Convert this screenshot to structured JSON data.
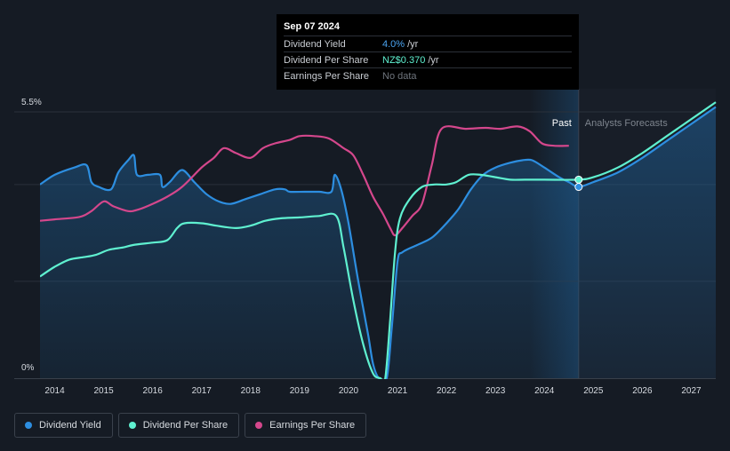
{
  "tooltip": {
    "date": "Sep 07 2024",
    "rows": [
      {
        "label": "Dividend Yield",
        "value": "4.0%",
        "unit": "/yr"
      },
      {
        "label": "Dividend Per Share",
        "value": "NZ$0.370",
        "unit": "/yr"
      },
      {
        "label": "Earnings Per Share",
        "value": "No data",
        "unit": ""
      }
    ]
  },
  "chart_data": {
    "type": "line",
    "y_top_label": "5.5%",
    "y_bottom_label": "0%",
    "ylim": [
      0,
      5.5
    ],
    "xlim": [
      2013.7,
      2027.5
    ],
    "x_ticks": [
      "2014",
      "2015",
      "2016",
      "2017",
      "2018",
      "2019",
      "2020",
      "2021",
      "2022",
      "2023",
      "2024",
      "2025",
      "2026",
      "2027"
    ],
    "past_label": "Past",
    "forecast_label": "Analysts Forecasts",
    "forecast_start": 2024.7,
    "highlight_start": 2023.7,
    "grid": true,
    "colors": {
      "dividend_yield": "#2d8ee0",
      "dividend_per_share": "#5ff0d0",
      "earnings_per_share": "#d4478c"
    },
    "series": [
      {
        "name": "Dividend Yield",
        "key": "dividend_yield",
        "points": [
          [
            2013.7,
            4.0
          ],
          [
            2014.0,
            4.2
          ],
          [
            2014.4,
            4.35
          ],
          [
            2014.65,
            4.4
          ],
          [
            2014.75,
            4.05
          ],
          [
            2014.9,
            3.95
          ],
          [
            2015.15,
            3.9
          ],
          [
            2015.3,
            4.25
          ],
          [
            2015.5,
            4.5
          ],
          [
            2015.62,
            4.6
          ],
          [
            2015.68,
            4.2
          ],
          [
            2015.9,
            4.2
          ],
          [
            2016.15,
            4.2
          ],
          [
            2016.2,
            3.95
          ],
          [
            2016.35,
            4.05
          ],
          [
            2016.6,
            4.3
          ],
          [
            2016.85,
            4.05
          ],
          [
            2017.1,
            3.8
          ],
          [
            2017.35,
            3.65
          ],
          [
            2017.6,
            3.6
          ],
          [
            2017.9,
            3.7
          ],
          [
            2018.2,
            3.8
          ],
          [
            2018.5,
            3.9
          ],
          [
            2018.7,
            3.9
          ],
          [
            2018.8,
            3.85
          ],
          [
            2019.1,
            3.85
          ],
          [
            2019.4,
            3.85
          ],
          [
            2019.65,
            3.85
          ],
          [
            2019.72,
            4.2
          ],
          [
            2019.85,
            3.9
          ],
          [
            2020.0,
            3.2
          ],
          [
            2020.2,
            2.0
          ],
          [
            2020.4,
            0.9
          ],
          [
            2020.5,
            0.3
          ],
          [
            2020.62,
            0.0
          ],
          [
            2020.78,
            0.0
          ],
          [
            2020.88,
            1.0
          ],
          [
            2021.0,
            2.4
          ],
          [
            2021.1,
            2.6
          ],
          [
            2021.4,
            2.75
          ],
          [
            2021.7,
            2.9
          ],
          [
            2022.0,
            3.2
          ],
          [
            2022.25,
            3.5
          ],
          [
            2022.5,
            3.9
          ],
          [
            2022.75,
            4.2
          ],
          [
            2023.0,
            4.35
          ],
          [
            2023.3,
            4.45
          ],
          [
            2023.55,
            4.5
          ],
          [
            2023.75,
            4.5
          ],
          [
            2024.0,
            4.35
          ],
          [
            2024.3,
            4.15
          ],
          [
            2024.5,
            4.05
          ],
          [
            2024.7,
            3.95
          ],
          [
            2025.0,
            4.05
          ],
          [
            2025.5,
            4.25
          ],
          [
            2026.0,
            4.55
          ],
          [
            2026.5,
            4.9
          ],
          [
            2027.0,
            5.25
          ],
          [
            2027.5,
            5.6
          ]
        ]
      },
      {
        "name": "Dividend Per Share",
        "key": "dividend_per_share",
        "points": [
          [
            2013.7,
            2.1
          ],
          [
            2014.0,
            2.3
          ],
          [
            2014.3,
            2.45
          ],
          [
            2014.6,
            2.5
          ],
          [
            2014.85,
            2.55
          ],
          [
            2015.1,
            2.65
          ],
          [
            2015.4,
            2.7
          ],
          [
            2015.6,
            2.75
          ],
          [
            2016.0,
            2.8
          ],
          [
            2016.3,
            2.85
          ],
          [
            2016.5,
            3.1
          ],
          [
            2016.65,
            3.2
          ],
          [
            2017.0,
            3.2
          ],
          [
            2017.3,
            3.15
          ],
          [
            2017.7,
            3.1
          ],
          [
            2018.0,
            3.15
          ],
          [
            2018.3,
            3.25
          ],
          [
            2018.6,
            3.3
          ],
          [
            2019.0,
            3.32
          ],
          [
            2019.4,
            3.35
          ],
          [
            2019.75,
            3.35
          ],
          [
            2019.9,
            2.7
          ],
          [
            2020.1,
            1.6
          ],
          [
            2020.3,
            0.7
          ],
          [
            2020.5,
            0.1
          ],
          [
            2020.65,
            0.0
          ],
          [
            2020.75,
            0.0
          ],
          [
            2020.85,
            1.2
          ],
          [
            2020.95,
            2.6
          ],
          [
            2021.05,
            3.3
          ],
          [
            2021.25,
            3.7
          ],
          [
            2021.5,
            3.95
          ],
          [
            2021.75,
            4.0
          ],
          [
            2022.0,
            4.0
          ],
          [
            2022.2,
            4.05
          ],
          [
            2022.45,
            4.2
          ],
          [
            2022.7,
            4.2
          ],
          [
            2023.0,
            4.15
          ],
          [
            2023.3,
            4.1
          ],
          [
            2023.6,
            4.1
          ],
          [
            2024.0,
            4.1
          ],
          [
            2024.7,
            4.1
          ],
          [
            2025.0,
            4.15
          ],
          [
            2025.5,
            4.35
          ],
          [
            2026.0,
            4.65
          ],
          [
            2026.5,
            5.0
          ],
          [
            2027.0,
            5.35
          ],
          [
            2027.5,
            5.7
          ]
        ]
      },
      {
        "name": "Earnings Per Share",
        "key": "earnings_per_share",
        "points": [
          [
            2013.7,
            3.25
          ],
          [
            2014.0,
            3.28
          ],
          [
            2014.5,
            3.33
          ],
          [
            2014.75,
            3.45
          ],
          [
            2015.0,
            3.65
          ],
          [
            2015.2,
            3.55
          ],
          [
            2015.5,
            3.45
          ],
          [
            2015.7,
            3.48
          ],
          [
            2016.0,
            3.6
          ],
          [
            2016.3,
            3.75
          ],
          [
            2016.6,
            3.95
          ],
          [
            2017.0,
            4.35
          ],
          [
            2017.25,
            4.55
          ],
          [
            2017.45,
            4.75
          ],
          [
            2017.7,
            4.65
          ],
          [
            2018.0,
            4.55
          ],
          [
            2018.25,
            4.75
          ],
          [
            2018.5,
            4.85
          ],
          [
            2018.8,
            4.92
          ],
          [
            2019.0,
            5.0
          ],
          [
            2019.3,
            5.0
          ],
          [
            2019.6,
            4.95
          ],
          [
            2019.9,
            4.75
          ],
          [
            2020.1,
            4.6
          ],
          [
            2020.3,
            4.2
          ],
          [
            2020.5,
            3.75
          ],
          [
            2020.7,
            3.4
          ],
          [
            2020.85,
            3.1
          ],
          [
            2020.95,
            2.95
          ],
          [
            2021.1,
            3.1
          ],
          [
            2021.3,
            3.35
          ],
          [
            2021.5,
            3.6
          ],
          [
            2021.7,
            4.4
          ],
          [
            2021.9,
            5.15
          ],
          [
            2022.4,
            5.15
          ],
          [
            2022.8,
            5.17
          ],
          [
            2023.1,
            5.15
          ],
          [
            2023.45,
            5.2
          ],
          [
            2023.7,
            5.1
          ],
          [
            2023.95,
            4.85
          ],
          [
            2024.2,
            4.8
          ],
          [
            2024.5,
            4.8
          ]
        ]
      }
    ]
  },
  "legend": [
    {
      "label": "Dividend Yield",
      "color": "#2d8ee0"
    },
    {
      "label": "Dividend Per Share",
      "color": "#5ff0d0"
    },
    {
      "label": "Earnings Per Share",
      "color": "#d4478c"
    }
  ]
}
